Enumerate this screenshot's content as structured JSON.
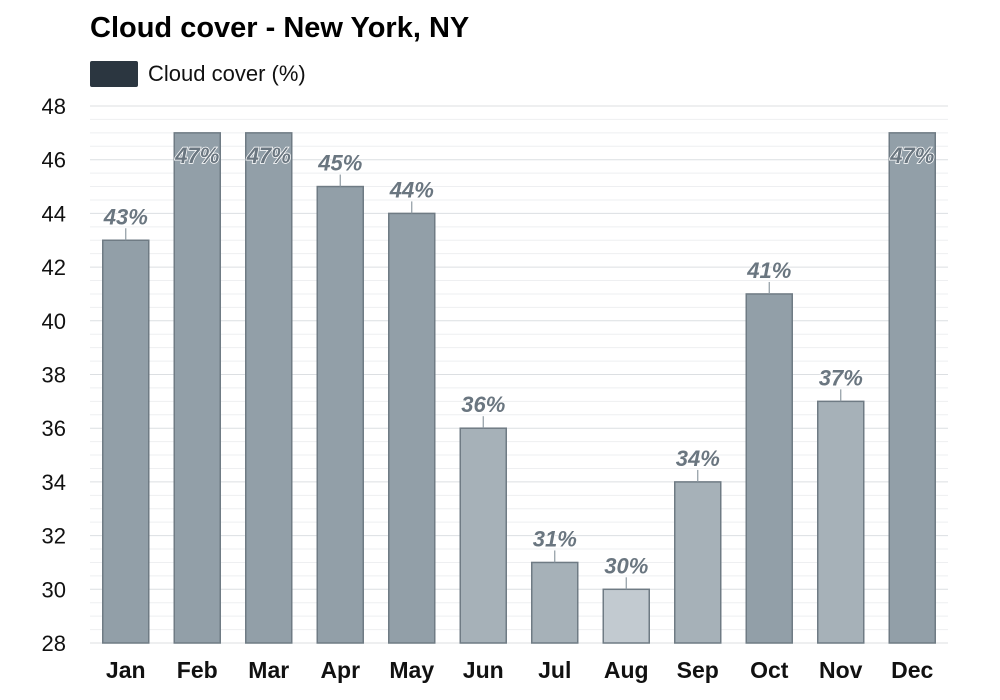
{
  "title": "Cloud cover - New York, NY",
  "legend": {
    "label": "Cloud cover (%)",
    "swatch_color": "#2b3640"
  },
  "chart_data": {
    "type": "bar",
    "title": "Cloud cover - New York, NY",
    "xlabel": "",
    "ylabel": "",
    "categories": [
      "Jan",
      "Feb",
      "Mar",
      "Apr",
      "May",
      "Jun",
      "Jul",
      "Aug",
      "Sep",
      "Oct",
      "Nov",
      "Dec"
    ],
    "series": [
      {
        "name": "Cloud cover (%)",
        "values": [
          43,
          47,
          47,
          45,
          44,
          36,
          31,
          30,
          34,
          41,
          37,
          47
        ]
      }
    ],
    "data_labels": [
      "43%",
      "47%",
      "47%",
      "45%",
      "44%",
      "36%",
      "31%",
      "30%",
      "34%",
      "41%",
      "37%",
      "47%"
    ],
    "ylim": [
      28,
      48
    ],
    "yticks": [
      28,
      30,
      32,
      34,
      36,
      38,
      40,
      42,
      44,
      46,
      48
    ],
    "grid": true,
    "legend_position": "top-left",
    "bar_colors": [
      "#929fa8",
      "#929fa8",
      "#929fa8",
      "#929fa8",
      "#929fa8",
      "#a6b1b8",
      "#a6b1b8",
      "#c2cad0",
      "#a6b1b8",
      "#929fa8",
      "#a6b1b8",
      "#929fa8"
    ],
    "bar_stroke_color": "#6f7b84",
    "data_label_color": "#6a7680"
  }
}
